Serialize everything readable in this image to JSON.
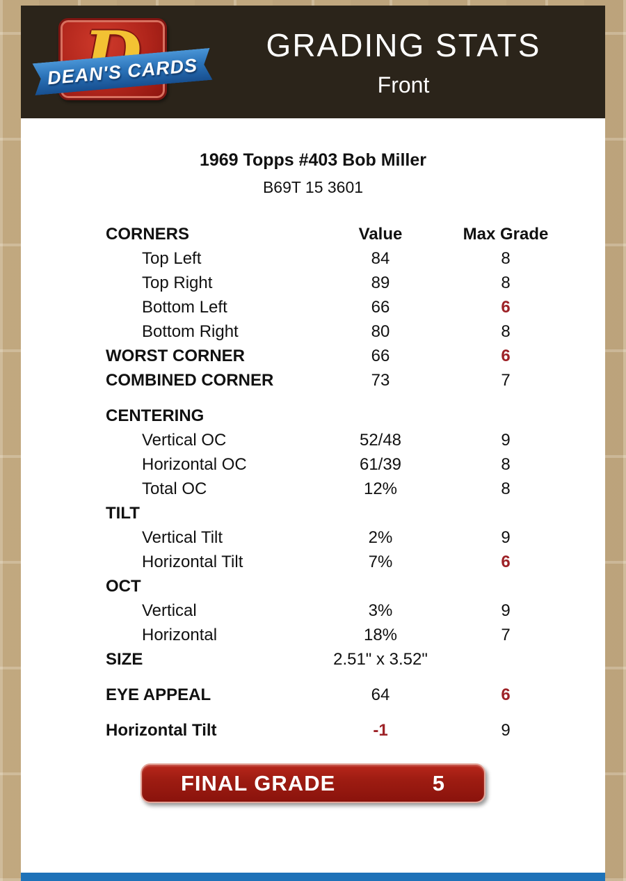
{
  "page": {
    "bg_color": "#c9b189",
    "header_bg": "#2b241a",
    "accent_red": "#9d2227",
    "final_red": "#9e1c12",
    "footer_blue": "#1e72b8"
  },
  "logo": {
    "letter": "D",
    "text": "DEAN'S CARDS"
  },
  "header": {
    "title": "GRADING STATS",
    "subtitle": "Front"
  },
  "card": {
    "title": "1969 Topps #403 Bob Miller",
    "code": "B69T 15 3601"
  },
  "table": {
    "columns": {
      "label": "CORNERS",
      "value": "Value",
      "max": "Max Grade"
    },
    "rows": [
      {
        "type": "row",
        "label": "Top Left",
        "value": "84",
        "max": "8",
        "indent": true
      },
      {
        "type": "row",
        "label": "Top Right",
        "value": "89",
        "max": "8",
        "indent": true
      },
      {
        "type": "row",
        "label": "Bottom Left",
        "value": "66",
        "max": "6",
        "indent": true,
        "red_max": true
      },
      {
        "type": "row",
        "label": "Bottom Right",
        "value": "80",
        "max": "8",
        "indent": true
      },
      {
        "type": "row",
        "label": "WORST CORNER",
        "value": "66",
        "max": "6",
        "bold": true,
        "red_max": true
      },
      {
        "type": "row",
        "label": "COMBINED CORNER",
        "value": "73",
        "max": "7",
        "bold": true
      },
      {
        "type": "gap"
      },
      {
        "type": "section",
        "label": "CENTERING"
      },
      {
        "type": "row",
        "label": "Vertical OC",
        "value": "52/48",
        "max": "9",
        "indent": true
      },
      {
        "type": "row",
        "label": "Horizontal OC",
        "value": "61/39",
        "max": "8",
        "indent": true
      },
      {
        "type": "row",
        "label": "Total OC",
        "value": "12%",
        "max": "8",
        "indent": true
      },
      {
        "type": "section",
        "label": "TILT"
      },
      {
        "type": "row",
        "label": "Vertical Tilt",
        "value": "2%",
        "max": "9",
        "indent": true
      },
      {
        "type": "row",
        "label": "Horizontal Tilt",
        "value": "7%",
        "max": "6",
        "indent": true,
        "red_max": true
      },
      {
        "type": "section",
        "label": "OCT"
      },
      {
        "type": "row",
        "label": "Vertical",
        "value": "3%",
        "max": "9",
        "indent": true
      },
      {
        "type": "row",
        "label": "Horizontal",
        "value": "18%",
        "max": "7",
        "indent": true
      },
      {
        "type": "row",
        "label": "SIZE",
        "value": "2.51\" x 3.52\"",
        "max": "",
        "bold": true
      },
      {
        "type": "gap"
      },
      {
        "type": "row",
        "label": "EYE APPEAL",
        "value": "64",
        "max": "6",
        "bold": true,
        "red_max": true
      },
      {
        "type": "gap"
      },
      {
        "type": "row",
        "label": "Horizontal Tilt",
        "value": "-1",
        "max": "9",
        "bold": true,
        "red_value": true
      }
    ]
  },
  "final": {
    "label": "FINAL GRADE",
    "value": "5"
  }
}
